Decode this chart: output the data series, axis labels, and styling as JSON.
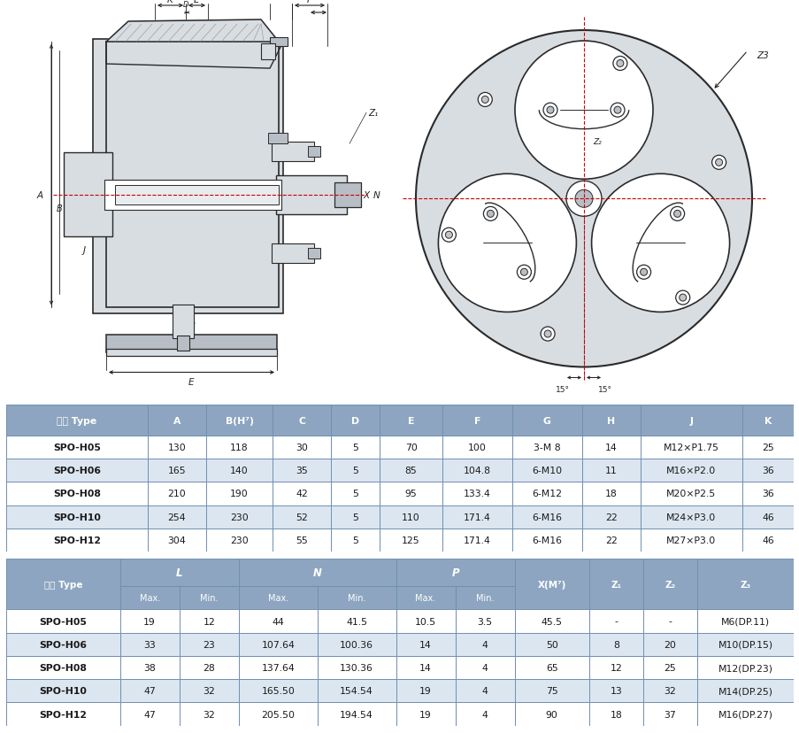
{
  "table1_header": [
    "型号 Type",
    "A",
    "B(H⁷)",
    "C",
    "D",
    "E",
    "F",
    "G",
    "H",
    "J",
    "K"
  ],
  "table1_rows": [
    [
      "SPO-H05",
      "130",
      "118",
      "30",
      "5",
      "70",
      "100",
      "3-M 8",
      "14",
      "M12×P1.75",
      "25"
    ],
    [
      "SPO-H06",
      "165",
      "140",
      "35",
      "5",
      "85",
      "104.8",
      "6-M10",
      "11",
      "M16×P2.0",
      "36"
    ],
    [
      "SPO-H08",
      "210",
      "190",
      "42",
      "5",
      "95",
      "133.4",
      "6-M12",
      "18",
      "M20×P2.5",
      "36"
    ],
    [
      "SPO-H10",
      "254",
      "230",
      "52",
      "5",
      "110",
      "171.4",
      "6-M16",
      "22",
      "M24×P3.0",
      "46"
    ],
    [
      "SPO-H12",
      "304",
      "230",
      "55",
      "5",
      "125",
      "171.4",
      "6-M16",
      "22",
      "M27×P3.0",
      "46"
    ]
  ],
  "table2_rows": [
    [
      "SPO-H05",
      "19",
      "12",
      "44",
      "41.5",
      "10.5",
      "3.5",
      "45.5",
      "-",
      "-",
      "M6(DP.11)"
    ],
    [
      "SPO-H06",
      "33",
      "23",
      "107.64",
      "100.36",
      "14",
      "4",
      "50",
      "8",
      "20",
      "M10(DP.15)"
    ],
    [
      "SPO-H08",
      "38",
      "28",
      "137.64",
      "130.36",
      "14",
      "4",
      "65",
      "12",
      "25",
      "M12(DP.23)"
    ],
    [
      "SPO-H10",
      "47",
      "32",
      "165.50",
      "154.54",
      "19",
      "4",
      "75",
      "13",
      "32",
      "M14(DP.25)"
    ],
    [
      "SPO-H12",
      "47",
      "32",
      "205.50",
      "194.54",
      "19",
      "4",
      "90",
      "18",
      "37",
      "M16(DP.27)"
    ]
  ],
  "header_bg": "#8da5c0",
  "header_text": "#ffffff",
  "odd_row_bg": "#ffffff",
  "even_row_bg": "#dce6f0",
  "border_color": "#7090b0",
  "body_text": "#1a1a1a",
  "drawing_bg": "#ffffff",
  "gray_light": "#d8dde2",
  "gray_mid": "#b8bec5",
  "gray_dark": "#8a9099",
  "line_color": "#2a2a2a",
  "center_line_color": "#cc0000",
  "dim_color": "#222222"
}
